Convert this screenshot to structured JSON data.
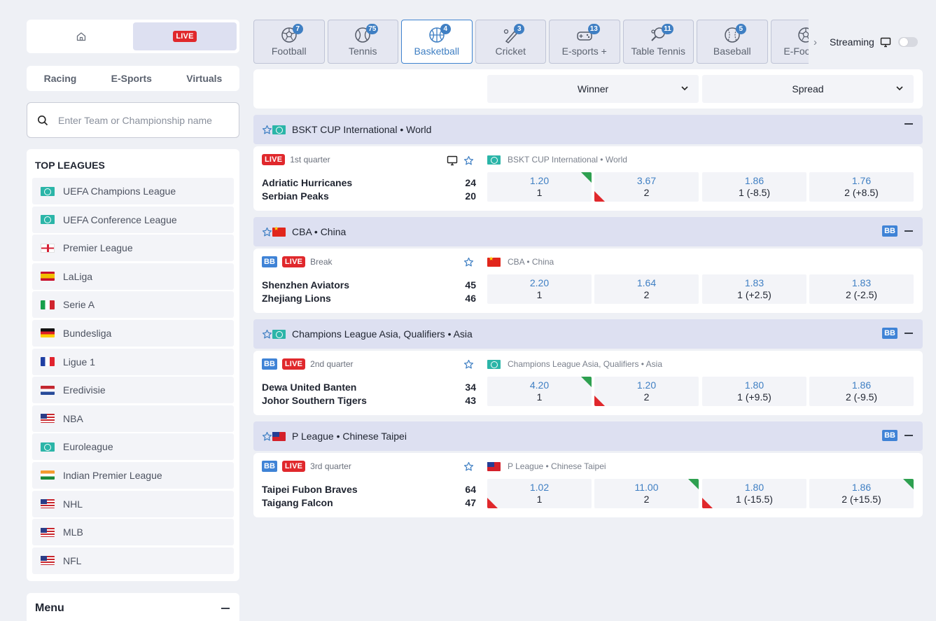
{
  "sidebar": {
    "live_label": "LIVE",
    "subnav": [
      "Racing",
      "E-Sports",
      "Virtuals"
    ],
    "search_placeholder": "Enter Team or Championship name",
    "top_leagues_title": "TOP LEAGUES",
    "leagues": [
      {
        "name": "UEFA Champions League",
        "flag": "world"
      },
      {
        "name": "UEFA Conference League",
        "flag": "world"
      },
      {
        "name": "Premier League",
        "flag": "eng"
      },
      {
        "name": "LaLiga",
        "flag": "es"
      },
      {
        "name": "Serie A",
        "flag": "it"
      },
      {
        "name": "Bundesliga",
        "flag": "de"
      },
      {
        "name": "Ligue 1",
        "flag": "fr"
      },
      {
        "name": "Eredivisie",
        "flag": "nl"
      },
      {
        "name": "NBA",
        "flag": "us"
      },
      {
        "name": "Euroleague",
        "flag": "world"
      },
      {
        "name": "Indian Premier League",
        "flag": "in"
      },
      {
        "name": "NHL",
        "flag": "us"
      },
      {
        "name": "MLB",
        "flag": "us"
      },
      {
        "name": "NFL",
        "flag": "us"
      }
    ],
    "menu_title": "Menu"
  },
  "sports": [
    {
      "name": "Football",
      "count": "7",
      "icon": "soccer-ball-icon"
    },
    {
      "name": "Tennis",
      "count": "75",
      "icon": "tennis-ball-icon"
    },
    {
      "name": "Basketball",
      "count": "4",
      "icon": "basketball-icon",
      "active": true
    },
    {
      "name": "Cricket",
      "count": "3",
      "icon": "cricket-bat-icon"
    },
    {
      "name": "E-sports +",
      "count": "13",
      "icon": "gamepad-icon"
    },
    {
      "name": "Table Tennis",
      "count": "11",
      "icon": "ping-pong-icon"
    },
    {
      "name": "Baseball",
      "count": "5",
      "icon": "baseball-icon"
    },
    {
      "name": "E-Football",
      "count": "",
      "icon": "soccer-ball-icon"
    }
  ],
  "streaming_label": "Streaming",
  "markets": {
    "market1": "Winner",
    "market2": "Spread"
  },
  "competitions": [
    {
      "title": "BSKT CUP International • World",
      "flag": "world",
      "bb": false,
      "event": {
        "bb": false,
        "status": "1st quarter",
        "stream": true,
        "league": "BSKT CUP International • World",
        "league_flag": "world",
        "home": "Adriatic Hurricanes",
        "away": "Serbian Peaks",
        "home_score": "24",
        "away_score": "20",
        "odds": [
          {
            "value": "1.20",
            "label": "1",
            "trend": "up"
          },
          {
            "value": "3.67",
            "label": "2",
            "trend": "down"
          },
          {
            "value": "1.86",
            "label": "1 (-8.5)",
            "trend": ""
          },
          {
            "value": "1.76",
            "label": "2 (+8.5)",
            "trend": ""
          }
        ]
      }
    },
    {
      "title": "CBA • China",
      "flag": "cn",
      "bb": true,
      "event": {
        "bb": true,
        "status": "Break",
        "stream": false,
        "league": "CBA • China",
        "league_flag": "cn",
        "home": "Shenzhen Aviators",
        "away": "Zhejiang Lions",
        "home_score": "45",
        "away_score": "46",
        "odds": [
          {
            "value": "2.20",
            "label": "1",
            "trend": ""
          },
          {
            "value": "1.64",
            "label": "2",
            "trend": ""
          },
          {
            "value": "1.83",
            "label": "1 (+2.5)",
            "trend": ""
          },
          {
            "value": "1.83",
            "label": "2 (-2.5)",
            "trend": ""
          }
        ]
      }
    },
    {
      "title": "Champions League Asia, Qualifiers • Asia",
      "flag": "world",
      "bb": true,
      "event": {
        "bb": true,
        "status": "2nd quarter",
        "stream": false,
        "league": "Champions League Asia, Qualifiers • Asia",
        "league_flag": "world",
        "home": "Dewa United Banten",
        "away": "Johor Southern Tigers",
        "home_score": "34",
        "away_score": "43",
        "odds": [
          {
            "value": "4.20",
            "label": "1",
            "trend": "up"
          },
          {
            "value": "1.20",
            "label": "2",
            "trend": "down"
          },
          {
            "value": "1.80",
            "label": "1 (+9.5)",
            "trend": ""
          },
          {
            "value": "1.86",
            "label": "2 (-9.5)",
            "trend": ""
          }
        ]
      }
    },
    {
      "title": "P League • Chinese Taipei",
      "flag": "tw",
      "bb": true,
      "event": {
        "bb": true,
        "status": "3rd quarter",
        "stream": false,
        "league": "P League • Chinese Taipei",
        "league_flag": "tw",
        "home": "Taipei Fubon Braves",
        "away": "Taigang Falcon",
        "home_score": "64",
        "away_score": "47",
        "odds": [
          {
            "value": "1.02",
            "label": "1",
            "trend": "down"
          },
          {
            "value": "11.00",
            "label": "2",
            "trend": "up"
          },
          {
            "value": "1.80",
            "label": "1 (-15.5)",
            "trend": "down"
          },
          {
            "value": "1.86",
            "label": "2 (+15.5)",
            "trend": "up"
          }
        ]
      }
    }
  ],
  "labels": {
    "bb": "BB",
    "live": "LIVE"
  },
  "colors": {
    "accent": "#3f7fc3",
    "live": "#e0282c",
    "odds_up": "#2ea050",
    "odds_down": "#e0282c",
    "competition_header": "#dde0f1"
  }
}
